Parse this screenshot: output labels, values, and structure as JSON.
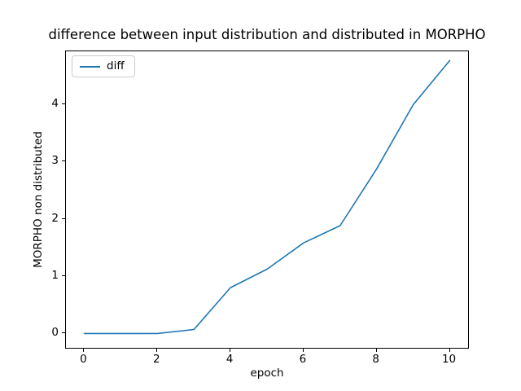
{
  "chart_data": {
    "type": "line",
    "title": "difference between input distribution and distributed in MORPHO",
    "xlabel": "epoch",
    "ylabel": "MORPHO non distributed",
    "x": [
      0,
      1,
      2,
      3,
      4,
      5,
      6,
      7,
      8,
      9,
      10
    ],
    "series": [
      {
        "name": "diff",
        "color": "#1f77b4",
        "values": [
          0.0,
          0.0,
          0.0,
          0.07,
          0.8,
          1.12,
          1.58,
          1.88,
          2.87,
          3.99,
          4.76
        ]
      }
    ],
    "xlim": [
      -0.5,
      10.5
    ],
    "ylim": [
      -0.25,
      4.92
    ],
    "xticks": [
      0,
      2,
      4,
      6,
      8,
      10
    ],
    "yticks": [
      0,
      1,
      2,
      3,
      4
    ],
    "grid": false,
    "legend": {
      "entries": [
        "diff"
      ],
      "position": "upper left"
    },
    "background": "#ffffff",
    "line_color": "#1f77b4"
  }
}
